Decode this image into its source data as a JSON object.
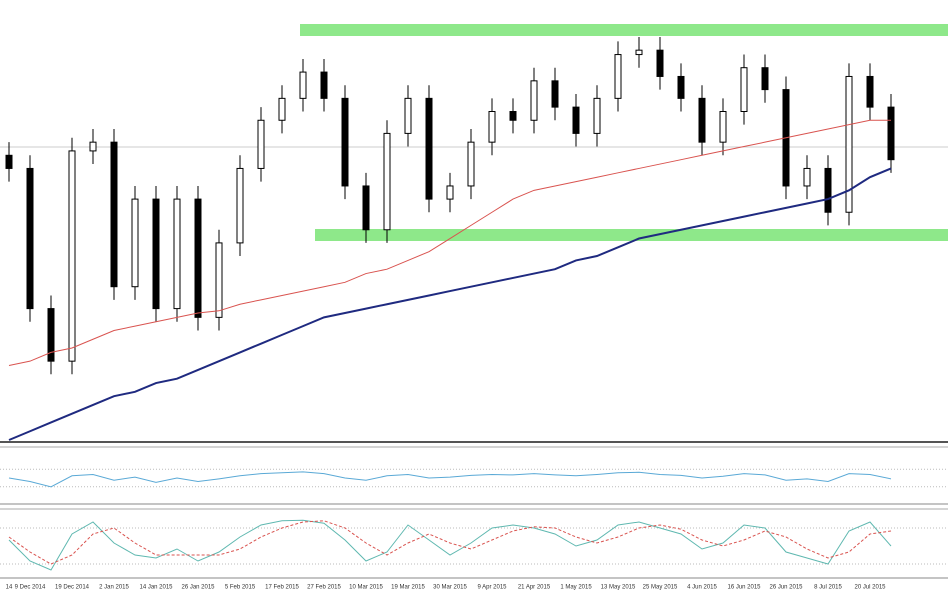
{
  "chart_data": [
    {
      "type": "candlestick",
      "categories": [
        "14",
        "9 Dec 2014",
        null,
        "19 Dec 2014",
        null,
        "2 Jan 2015",
        null,
        "14 Jan 2015",
        null,
        "26 Jan 2015",
        null,
        "5 Feb 2015",
        null,
        "17 Feb 2015",
        null,
        "27 Feb 2015",
        null,
        "10 Mar 2015",
        null,
        "19 Mar 2015",
        null,
        "30 Mar 2015",
        null,
        "9 Apr 2015",
        null,
        "21 Apr 2015",
        null,
        "1 May 2015",
        null,
        "13 May 2015",
        null,
        "25 May 2015",
        null,
        "4 Jun 2015",
        null,
        "16 Jun 2015",
        null,
        "26 Jun 2015",
        null,
        "8 Jul 2015",
        null,
        "20 Jul 2015",
        null
      ],
      "open": [
        65,
        62,
        30,
        18,
        66,
        68,
        35,
        55,
        30,
        55,
        28,
        45,
        62,
        73,
        78,
        84,
        78,
        58,
        48,
        70,
        78,
        55,
        58,
        68,
        75,
        73,
        82,
        76,
        70,
        78,
        88,
        89,
        83,
        78,
        68,
        75,
        85,
        80,
        58,
        62,
        52,
        83,
        76
      ],
      "high": [
        68,
        65,
        33,
        69,
        71,
        71,
        58,
        58,
        58,
        58,
        48,
        65,
        76,
        81,
        87,
        87,
        81,
        61,
        73,
        81,
        81,
        61,
        71,
        78,
        78,
        85,
        85,
        79,
        81,
        91,
        92,
        92,
        86,
        81,
        78,
        88,
        88,
        83,
        65,
        65,
        86,
        86,
        79
      ],
      "low": [
        59,
        27,
        15,
        15,
        63,
        32,
        32,
        27,
        27,
        25,
        25,
        42,
        59,
        70,
        75,
        75,
        55,
        45,
        45,
        67,
        52,
        52,
        55,
        65,
        70,
        70,
        73,
        67,
        67,
        75,
        85,
        80,
        75,
        65,
        65,
        72,
        77,
        55,
        55,
        49,
        49,
        73,
        61
      ],
      "close": [
        62,
        30,
        18,
        66,
        68,
        35,
        55,
        30,
        55,
        28,
        45,
        62,
        73,
        78,
        84,
        78,
        58,
        48,
        70,
        78,
        55,
        58,
        68,
        75,
        73,
        82,
        76,
        70,
        78,
        88,
        89,
        83,
        78,
        68,
        75,
        85,
        80,
        58,
        62,
        52,
        83,
        76,
        64
      ],
      "up_color": "#ffffff",
      "down_color": "#000000",
      "series": [
        {
          "color": "#d9534f",
          "values": [
            17,
            18,
            20,
            21,
            23,
            25,
            26,
            27,
            28,
            29,
            29.5,
            31,
            32,
            33,
            34,
            35,
            36,
            38,
            39,
            41,
            43,
            46,
            49,
            52,
            55,
            57,
            58,
            59,
            60,
            61,
            62,
            63,
            64,
            65,
            66,
            67,
            68,
            69,
            70,
            71,
            72,
            73,
            73
          ]
        },
        {
          "color": "#1f2a80",
          "values": [
            0,
            2,
            4,
            6,
            8,
            10,
            11,
            13,
            14,
            16,
            18,
            20,
            22,
            24,
            26,
            28,
            29,
            30,
            31,
            32,
            33,
            34,
            35,
            36,
            37,
            38,
            39,
            41,
            42,
            44,
            46,
            47,
            48,
            49,
            50,
            51,
            52,
            53,
            54,
            55,
            57,
            60,
            62
          ]
        }
      ],
      "ylim": [
        0,
        100
      ]
    },
    {
      "type": "line",
      "series": [
        {
          "color": "#5aa9d6",
          "values": [
            50,
            42,
            30,
            55,
            58,
            45,
            52,
            40,
            50,
            42,
            48,
            55,
            60,
            62,
            64,
            60,
            50,
            45,
            55,
            58,
            50,
            52,
            56,
            58,
            57,
            60,
            57,
            55,
            58,
            62,
            63,
            58,
            56,
            50,
            54,
            60,
            57,
            45,
            48,
            42,
            60,
            58,
            48
          ]
        }
      ],
      "levels": [
        70,
        30
      ],
      "ylim": [
        0,
        100
      ]
    },
    {
      "type": "line",
      "series": [
        {
          "color": "#5fb8b0",
          "values": [
            60,
            25,
            10,
            70,
            90,
            55,
            35,
            30,
            45,
            25,
            40,
            65,
            85,
            92,
            93,
            88,
            60,
            25,
            40,
            85,
            60,
            35,
            55,
            80,
            85,
            80,
            70,
            50,
            60,
            85,
            90,
            80,
            70,
            45,
            55,
            85,
            80,
            40,
            30,
            20,
            75,
            90,
            50
          ]
        },
        {
          "color": "#d9534f",
          "dashed": true,
          "values": [
            65,
            40,
            20,
            35,
            70,
            80,
            55,
            35,
            35,
            35,
            35,
            45,
            65,
            80,
            90,
            92,
            80,
            55,
            35,
            55,
            70,
            55,
            45,
            60,
            75,
            82,
            80,
            65,
            55,
            65,
            80,
            85,
            78,
            60,
            50,
            60,
            75,
            65,
            45,
            30,
            40,
            70,
            75
          ]
        }
      ],
      "levels": [
        80,
        20
      ],
      "ylim": [
        0,
        100
      ]
    }
  ]
}
